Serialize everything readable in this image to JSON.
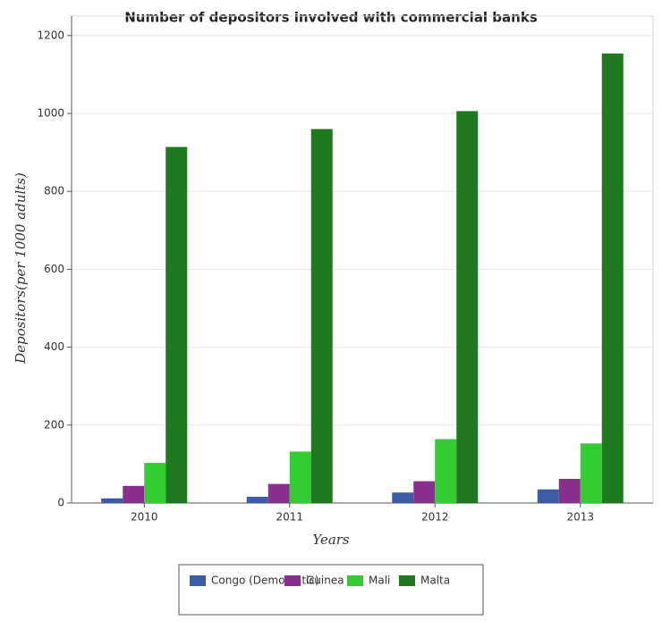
{
  "chart_data": {
    "type": "bar",
    "title": "Number of depositors involved with commercial banks",
    "x_label": "Years",
    "y_label": "Depositors(per 1000 adults)",
    "categories": [
      "2010",
      "2011",
      "2012",
      "2013"
    ],
    "series": [
      {
        "name": "Congo (Democratic)",
        "color": "#3c5ca8",
        "values": [
          12,
          16,
          27,
          35
        ]
      },
      {
        "name": "Guinea",
        "color": "#8b2f8f",
        "values": [
          44,
          49,
          56,
          62
        ]
      },
      {
        "name": "Mali",
        "color": "#33cc33",
        "values": [
          103,
          132,
          164,
          153
        ]
      },
      {
        "name": "Malta",
        "color": "#1f7a1f",
        "values": [
          914,
          960,
          1006,
          1154
        ]
      }
    ],
    "ylim": [
      0,
      1250
    ],
    "yticks": [
      0,
      200,
      400,
      600,
      800,
      1000,
      1200
    ],
    "grid": true,
    "legend": "bottom"
  }
}
